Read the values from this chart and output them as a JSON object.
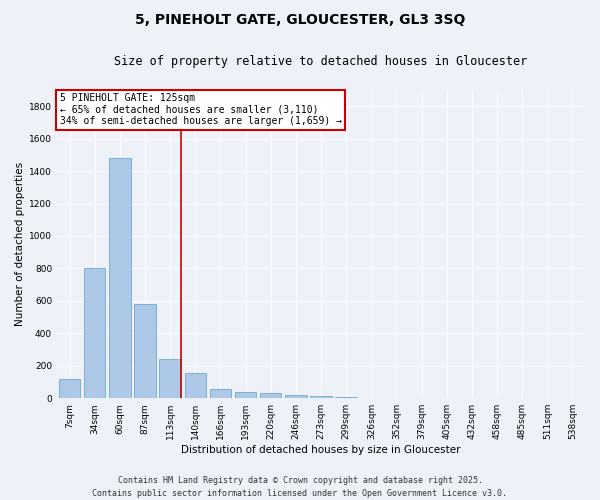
{
  "title": "5, PINEHOLT GATE, GLOUCESTER, GL3 3SQ",
  "subtitle": "Size of property relative to detached houses in Gloucester",
  "xlabel": "Distribution of detached houses by size in Gloucester",
  "ylabel": "Number of detached properties",
  "categories": [
    "7sqm",
    "34sqm",
    "60sqm",
    "87sqm",
    "113sqm",
    "140sqm",
    "166sqm",
    "193sqm",
    "220sqm",
    "246sqm",
    "273sqm",
    "299sqm",
    "326sqm",
    "352sqm",
    "379sqm",
    "405sqm",
    "432sqm",
    "458sqm",
    "485sqm",
    "511sqm",
    "538sqm"
  ],
  "values": [
    120,
    800,
    1480,
    580,
    240,
    155,
    55,
    40,
    30,
    20,
    15,
    5,
    0,
    0,
    0,
    0,
    0,
    0,
    0,
    0,
    0
  ],
  "bar_color": "#aec8e8",
  "bar_edge_color": "#6aaad4",
  "vline_color": "#cc0000",
  "annotation_text": "5 PINEHOLT GATE: 125sqm\n← 65% of detached houses are smaller (3,110)\n34% of semi-detached houses are larger (1,659) →",
  "annotation_box_color": "#ffffff",
  "annotation_box_edge": "#cc0000",
  "background_color": "#eef2f8",
  "grid_color": "#ffffff",
  "ylim": [
    0,
    1900
  ],
  "yticks": [
    0,
    200,
    400,
    600,
    800,
    1000,
    1200,
    1400,
    1600,
    1800
  ],
  "footer": "Contains HM Land Registry data © Crown copyright and database right 2025.\nContains public sector information licensed under the Open Government Licence v3.0.",
  "title_fontsize": 10,
  "subtitle_fontsize": 8.5,
  "xlabel_fontsize": 7.5,
  "ylabel_fontsize": 7.5,
  "tick_fontsize": 6.5,
  "footer_fontsize": 6
}
